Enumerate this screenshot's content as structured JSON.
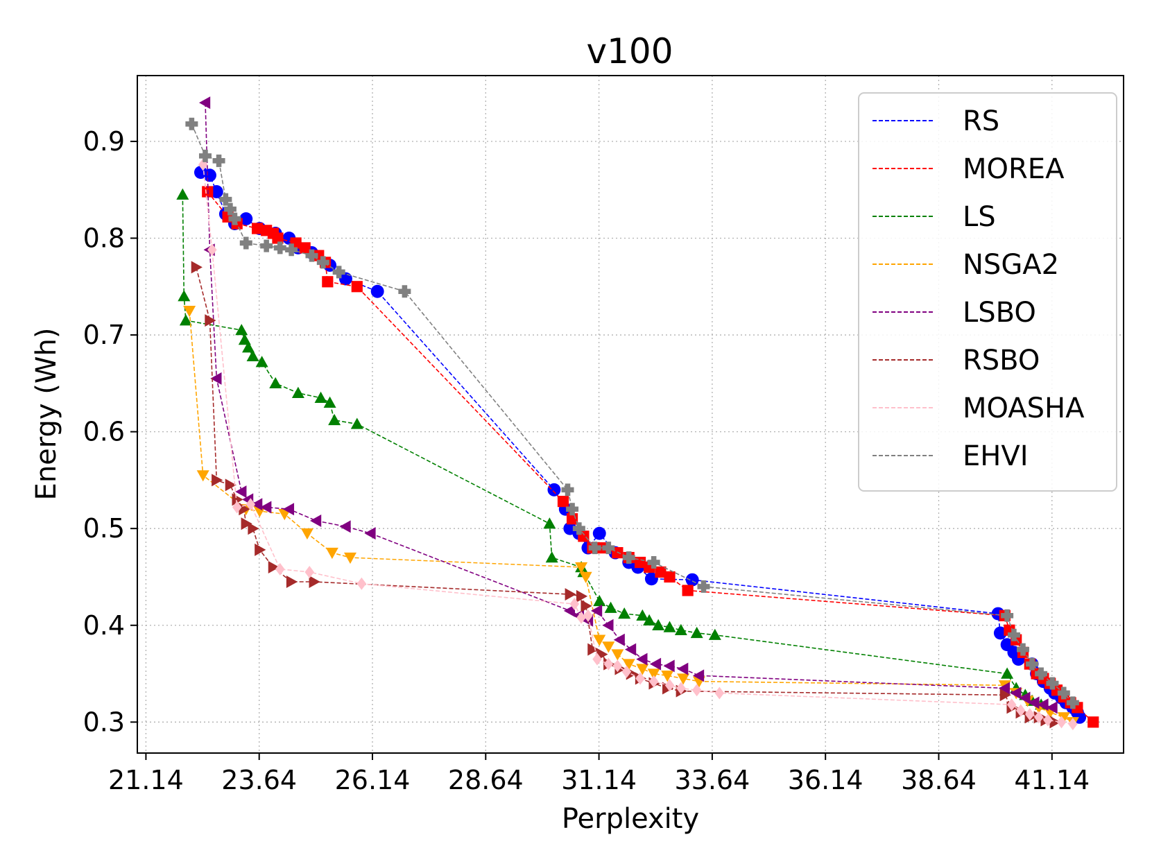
{
  "chart_data": {
    "type": "line",
    "title": "v100",
    "xlabel": "Perplexity",
    "ylabel": "Energy (Wh)",
    "xlim": [
      20.95,
      42.72
    ],
    "ylim": [
      0.268,
      0.968
    ],
    "xticks": [
      21.14,
      23.64,
      26.14,
      28.64,
      31.14,
      33.64,
      36.14,
      38.64,
      41.14
    ],
    "xtick_labels": [
      "21.14",
      "23.64",
      "26.14",
      "28.64",
      "31.14",
      "33.64",
      "36.14",
      "38.64",
      "41.14"
    ],
    "yticks": [
      0.3,
      0.4,
      0.5,
      0.6,
      0.7,
      0.8,
      0.9
    ],
    "ytick_labels": [
      "0.3",
      "0.4",
      "0.5",
      "0.6",
      "0.7",
      "0.8",
      "0.9"
    ],
    "grid": true,
    "legend_position": "top-right",
    "series": [
      {
        "name": "RS",
        "color": "#0000ff",
        "marker": "circle",
        "x": [
          22.35,
          22.55,
          22.7,
          22.9,
          23.1,
          23.35,
          23.65,
          24.0,
          24.3,
          24.5,
          24.8,
          25.2,
          25.55,
          26.25,
          30.15,
          30.4,
          30.5,
          30.7,
          30.9,
          31.15,
          31.5,
          31.8,
          32.0,
          32.3,
          33.2,
          39.95,
          40.0,
          40.15,
          40.3,
          40.4,
          40.7,
          40.8,
          40.95,
          41.1,
          41.2,
          41.35,
          41.45,
          41.6,
          41.7,
          41.75
        ],
        "y": [
          0.868,
          0.865,
          0.848,
          0.825,
          0.815,
          0.82,
          0.81,
          0.805,
          0.8,
          0.79,
          0.785,
          0.772,
          0.758,
          0.745,
          0.54,
          0.52,
          0.5,
          0.495,
          0.48,
          0.495,
          0.475,
          0.465,
          0.46,
          0.448,
          0.447,
          0.412,
          0.392,
          0.38,
          0.372,
          0.365,
          0.36,
          0.35,
          0.342,
          0.335,
          0.33,
          0.325,
          0.32,
          0.315,
          0.31,
          0.305
        ]
      },
      {
        "name": "MOREA",
        "color": "#ff0000",
        "marker": "square",
        "x": [
          22.5,
          22.95,
          23.15,
          23.6,
          23.8,
          23.95,
          24.05,
          24.45,
          24.65,
          24.95,
          25.1,
          25.15,
          25.8,
          30.35,
          30.55,
          30.8,
          31.0,
          31.2,
          31.55,
          31.8,
          32.05,
          32.25,
          32.5,
          32.7,
          33.1,
          40.1,
          40.2,
          40.35,
          40.5,
          40.65,
          40.8,
          40.95,
          41.1,
          41.25,
          41.4,
          41.55,
          41.7,
          42.05
        ],
        "y": [
          0.848,
          0.822,
          0.815,
          0.81,
          0.808,
          0.805,
          0.8,
          0.795,
          0.79,
          0.782,
          0.775,
          0.755,
          0.75,
          0.528,
          0.51,
          0.492,
          0.48,
          0.48,
          0.475,
          0.47,
          0.465,
          0.46,
          0.455,
          0.45,
          0.436,
          0.41,
          0.395,
          0.385,
          0.372,
          0.36,
          0.35,
          0.345,
          0.34,
          0.333,
          0.326,
          0.32,
          0.315,
          0.3
        ]
      },
      {
        "name": "LS",
        "color": "#008000",
        "marker": "triangle-up",
        "x": [
          21.95,
          21.98,
          22.02,
          23.25,
          23.32,
          23.4,
          23.5,
          23.7,
          24.0,
          24.5,
          25.0,
          25.2,
          25.3,
          25.8,
          30.05,
          30.1,
          30.75,
          30.8,
          31.15,
          31.4,
          31.7,
          32.1,
          32.25,
          32.45,
          32.7,
          32.95,
          33.3,
          33.7,
          40.15,
          40.35,
          40.55,
          40.7,
          40.9
        ],
        "y": [
          0.845,
          0.74,
          0.715,
          0.705,
          0.695,
          0.687,
          0.678,
          0.672,
          0.65,
          0.64,
          0.635,
          0.63,
          0.612,
          0.608,
          0.505,
          0.47,
          0.46,
          0.455,
          0.425,
          0.418,
          0.412,
          0.41,
          0.405,
          0.4,
          0.398,
          0.395,
          0.392,
          0.39,
          0.35,
          0.335,
          0.328,
          0.322,
          0.318
        ]
      },
      {
        "name": "NSGA2",
        "color": "#ffa500",
        "marker": "triangle-down",
        "x": [
          22.1,
          22.4,
          23.35,
          23.65,
          24.2,
          24.7,
          25.25,
          25.65,
          30.75,
          30.85,
          31.15,
          31.35,
          31.55,
          31.8,
          32.1,
          32.35,
          32.65,
          33.0,
          33.35,
          40.1,
          40.35,
          40.6,
          40.85,
          41.1,
          41.4,
          41.6
        ],
        "y": [
          0.725,
          0.555,
          0.52,
          0.518,
          0.515,
          0.495,
          0.475,
          0.47,
          0.46,
          0.45,
          0.385,
          0.378,
          0.37,
          0.36,
          0.355,
          0.35,
          0.348,
          0.345,
          0.342,
          0.338,
          0.33,
          0.322,
          0.315,
          0.31,
          0.305,
          0.3
        ]
      },
      {
        "name": "LSBO",
        "color": "#800080",
        "marker": "triangle-left",
        "x": [
          22.45,
          22.55,
          22.7,
          23.25,
          23.4,
          23.6,
          23.8,
          24.3,
          24.9,
          25.55,
          26.1,
          30.5,
          30.7,
          30.9,
          31.1,
          31.35,
          31.6,
          31.85,
          32.1,
          32.4,
          32.7,
          33.0,
          33.35,
          40.1,
          40.35,
          40.55,
          40.75,
          40.95,
          41.15
        ],
        "y": [
          0.94,
          0.788,
          0.655,
          0.538,
          0.53,
          0.525,
          0.522,
          0.52,
          0.508,
          0.502,
          0.495,
          0.415,
          0.41,
          0.405,
          0.415,
          0.4,
          0.385,
          0.375,
          0.365,
          0.36,
          0.358,
          0.355,
          0.348,
          0.335,
          0.33,
          0.325,
          0.32,
          0.318,
          0.315
        ]
      },
      {
        "name": "RSBO",
        "color": "#a52a2a",
        "marker": "triangle-right",
        "x": [
          22.25,
          22.55,
          22.7,
          23.0,
          23.15,
          23.3,
          23.35,
          23.5,
          23.65,
          23.95,
          24.35,
          24.85,
          30.5,
          30.75,
          30.85,
          31.0,
          31.2,
          31.35,
          31.6,
          31.85,
          32.05,
          32.35,
          32.65,
          32.95,
          40.1,
          40.25,
          40.45,
          40.65,
          40.85,
          41.0,
          41.2
        ],
        "y": [
          0.77,
          0.715,
          0.55,
          0.545,
          0.53,
          0.52,
          0.505,
          0.5,
          0.478,
          0.46,
          0.445,
          0.445,
          0.432,
          0.43,
          0.42,
          0.375,
          0.37,
          0.36,
          0.355,
          0.35,
          0.345,
          0.34,
          0.335,
          0.332,
          0.328,
          0.315,
          0.31,
          0.305,
          0.305,
          0.302,
          0.3
        ]
      },
      {
        "name": "MOASHA",
        "color": "#ffc0cb",
        "marker": "diamond",
        "x": [
          22.4,
          22.6,
          23.15,
          23.45,
          24.1,
          24.75,
          25.9,
          30.6,
          30.75,
          30.9,
          31.1,
          31.35,
          31.55,
          31.75,
          32.05,
          32.35,
          32.7,
          32.95,
          33.3,
          33.8,
          40.25,
          40.45,
          40.65,
          40.85,
          41.05,
          41.35,
          41.6
        ],
        "y": [
          0.876,
          0.788,
          0.522,
          0.525,
          0.458,
          0.455,
          0.443,
          0.422,
          0.408,
          0.41,
          0.365,
          0.36,
          0.358,
          0.352,
          0.345,
          0.342,
          0.338,
          0.335,
          0.333,
          0.33,
          0.318,
          0.312,
          0.308,
          0.305,
          0.302,
          0.3,
          0.298
        ]
      },
      {
        "name": "EHVI",
        "color": "#808080",
        "marker": "plus",
        "x": [
          22.15,
          22.45,
          22.75,
          22.9,
          23.0,
          23.1,
          23.35,
          23.8,
          24.1,
          24.35,
          24.8,
          25.05,
          25.4,
          26.85,
          30.45,
          30.55,
          30.7,
          31.05,
          31.35,
          31.8,
          32.35,
          33.45,
          40.15,
          40.3,
          40.5,
          40.7,
          40.9,
          41.15,
          41.4,
          41.6
        ],
        "y": [
          0.918,
          0.885,
          0.88,
          0.84,
          0.83,
          0.82,
          0.795,
          0.792,
          0.79,
          0.788,
          0.782,
          0.775,
          0.765,
          0.745,
          0.54,
          0.52,
          0.5,
          0.48,
          0.48,
          0.47,
          0.465,
          0.44,
          0.41,
          0.39,
          0.375,
          0.36,
          0.35,
          0.34,
          0.33,
          0.32
        ]
      }
    ]
  }
}
